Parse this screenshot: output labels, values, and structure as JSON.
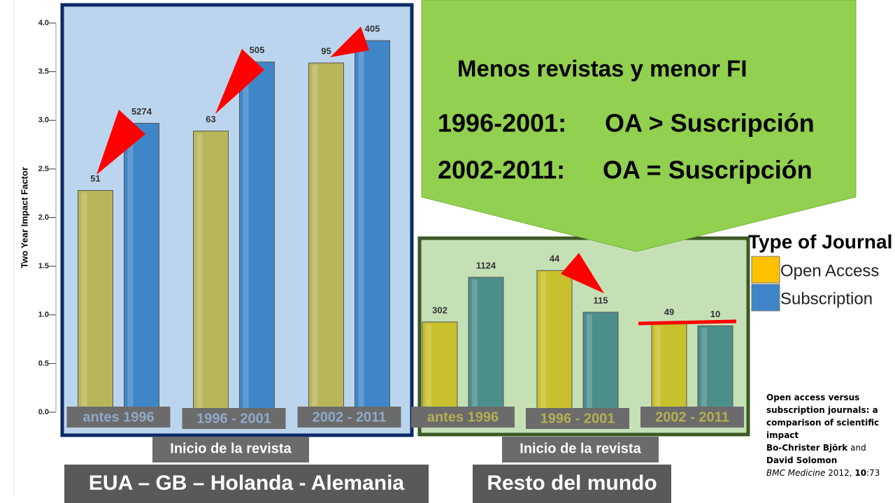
{
  "chart_data": [
    {
      "type": "bar",
      "y_label": "Two Year Impact Factor",
      "x_label": "Inicio de la revista",
      "caption": "EUA – GB – Holanda - Alemania",
      "legend_title": "Type of Journal",
      "categories": [
        "antes 1996",
        "1996 - 2001",
        "2002 - 2011"
      ],
      "series": [
        {
          "name": "Open Access",
          "color": "#b8b65a",
          "values": [
            2.28,
            2.89,
            3.59
          ],
          "counts": [
            "51",
            "63",
            "95"
          ]
        },
        {
          "name": "Subscription",
          "color": "#3f86c8",
          "values": [
            2.97,
            3.6,
            3.82
          ],
          "counts": [
            "5274",
            "505",
            "405"
          ]
        }
      ],
      "ylim": [
        0,
        4.0
      ],
      "yticks": [
        {
          "value": 0,
          "label": "0.0"
        },
        0.5,
        {
          "value": 1,
          "label": "1.0"
        },
        1.5,
        {
          "value": 2,
          "label": "2.0"
        },
        2.5,
        {
          "value": 3,
          "label": "3.0"
        },
        3.5,
        {
          "value": 4,
          "label": "4.0"
        }
      ]
    },
    {
      "type": "bar",
      "x_label": "Inicio de la revista",
      "caption": "Resto del mundo",
      "categories": [
        "antes 1996",
        "1996 - 2001",
        "2002 - 2011"
      ],
      "series": [
        {
          "color": "#c8c02c",
          "values": [
            0.93,
            1.46,
            0.91
          ],
          "counts": [
            "302",
            "44",
            "49"
          ]
        },
        {
          "color": "#4b8e8a",
          "values": [
            1.39,
            1.03,
            0.89
          ],
          "counts": [
            "1124",
            "115",
            "10"
          ]
        }
      ],
      "ylim": [
        0,
        1.8
      ]
    }
  ],
  "callout": {
    "headline": "Menos revistas y menor FI",
    "rows": [
      {
        "period": "1996-2001:",
        "text": "OA > Suscripción"
      },
      {
        "period": "2002-2011:",
        "text": "OA = Suscripción"
      }
    ]
  },
  "citation": {
    "title": "Open access versus subscription journals: a comparison of scientific impact",
    "author1": "Bo-Christer Björk",
    "and": "and",
    "author2": "David Solomon",
    "journal": "BMC Medicine",
    "year": "2012,",
    "volume": "10",
    "pages": ":73"
  }
}
